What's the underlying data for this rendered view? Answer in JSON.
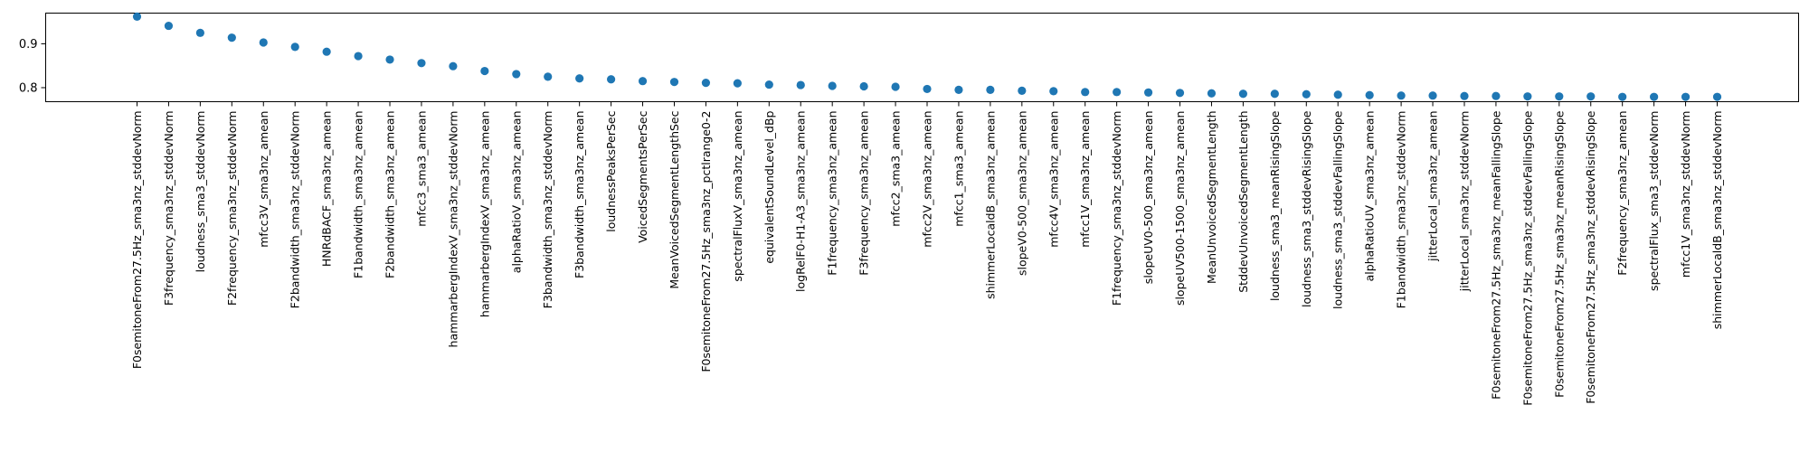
{
  "chart_data": {
    "type": "scatter",
    "title": "",
    "xlabel": "",
    "ylabel": "",
    "ylim": [
      0.768,
      0.97
    ],
    "yticks": [
      0.8,
      0.9
    ],
    "ytick_labels": [
      "0.8",
      "0.9"
    ],
    "grid": false,
    "marker_color": "#1f77b4",
    "categories": [
      "F0semitoneFrom27.5Hz_sma3nz_stddevNorm",
      "F3frequency_sma3nz_stddevNorm",
      "loudness_sma3_stddevNorm",
      "F2frequency_sma3nz_stddevNorm",
      "mfcc3V_sma3nz_amean",
      "F2bandwidth_sma3nz_stddevNorm",
      "HNRdBACF_sma3nz_amean",
      "F1bandwidth_sma3nz_amean",
      "F2bandwidth_sma3nz_amean",
      "mfcc3_sma3_amean",
      "hammarbergIndexV_sma3nz_stddevNorm",
      "hammarbergIndexV_sma3nz_amean",
      "alphaRatioV_sma3nz_amean",
      "F3bandwidth_sma3nz_stddevNorm",
      "F3bandwidth_sma3nz_amean",
      "loudnessPeaksPerSec",
      "VoicedSegmentsPerSec",
      "MeanVoicedSegmentLengthSec",
      "F0semitoneFrom27.5Hz_sma3nz_pctlrange0-2",
      "spectralFluxV_sma3nz_amean",
      "equivalentSoundLevel_dBp",
      "logRelF0-H1-A3_sma3nz_amean",
      "F1frequency_sma3nz_amean",
      "F3frequency_sma3nz_amean",
      "mfcc2_sma3_amean",
      "mfcc2V_sma3nz_amean",
      "mfcc1_sma3_amean",
      "shimmerLocaldB_sma3nz_amean",
      "slopeV0-500_sma3nz_amean",
      "mfcc4V_sma3nz_amean",
      "mfcc1V_sma3nz_amean",
      "F1frequency_sma3nz_stddevNorm",
      "slopeUV0-500_sma3nz_amean",
      "slopeUV500-1500_sma3nz_amean",
      "MeanUnvoicedSegmentLength",
      "StddevUnvoicedSegmentLength",
      "loudness_sma3_meanRisingSlope",
      "loudness_sma3_stddevRisingSlope",
      "loudness_sma3_stddevFallingSlope",
      "alphaRatioUV_sma3nz_amean",
      "F1bandwidth_sma3nz_stddevNorm",
      "jitterLocal_sma3nz_amean",
      "jitterLocal_sma3nz_stddevNorm",
      "F0semitoneFrom27.5Hz_sma3nz_meanFallingSlope",
      "F0semitoneFrom27.5Hz_sma3nz_stddevFallingSlope",
      "F0semitoneFrom27.5Hz_sma3nz_meanRisingSlope",
      "F0semitoneFrom27.5Hz_sma3nz_stddevRisingSlope",
      "F2frequency_sma3nz_amean",
      "spectralFlux_sma3_stddevNorm",
      "mfcc1V_sma3nz_stddevNorm",
      "shimmerLocaldB_sma3nz_stddevNorm"
    ],
    "values": [
      0.962,
      0.941,
      0.925,
      0.914,
      0.903,
      0.893,
      0.882,
      0.872,
      0.864,
      0.856,
      0.849,
      0.838,
      0.831,
      0.825,
      0.821,
      0.819,
      0.815,
      0.813,
      0.811,
      0.81,
      0.807,
      0.806,
      0.804,
      0.803,
      0.802,
      0.797,
      0.795,
      0.795,
      0.793,
      0.792,
      0.79,
      0.79,
      0.789,
      0.788,
      0.787,
      0.786,
      0.786,
      0.785,
      0.784,
      0.783,
      0.782,
      0.782,
      0.781,
      0.781,
      0.78,
      0.78,
      0.78,
      0.779,
      0.779,
      0.779,
      0.779
    ]
  }
}
